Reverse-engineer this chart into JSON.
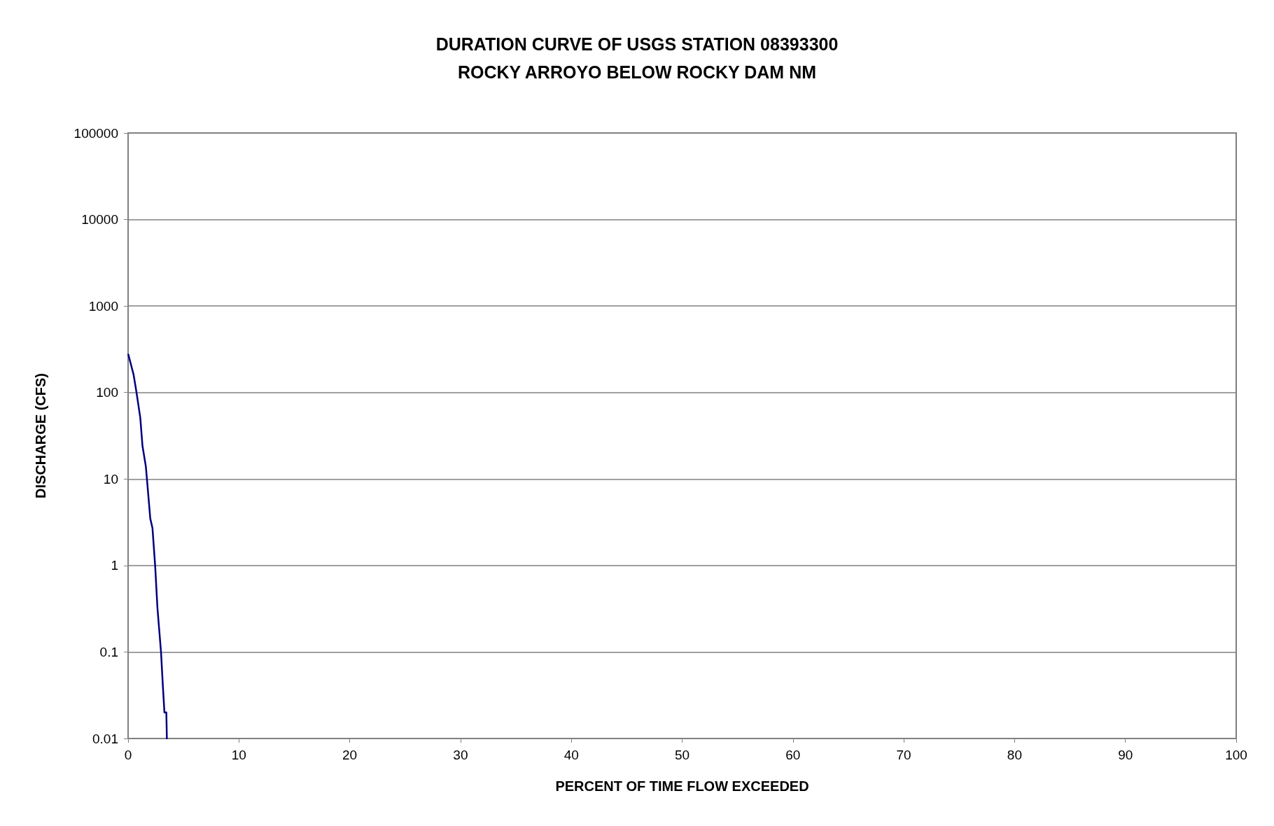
{
  "chart_data": {
    "type": "line",
    "title": "DURATION CURVE OF USGS STATION 08393300\nROCKY ARROYO BELOW ROCKY DAM NM",
    "xlabel": "PERCENT OF TIME FLOW EXCEEDED",
    "ylabel": "DISCHARGE (CFS)",
    "series": [
      {
        "color": "#000080",
        "x": [
          0.02,
          0.49,
          0.76,
          1.1,
          1.3,
          1.6,
          1.7,
          2.0,
          2.2,
          2.44,
          2.65,
          2.97,
          3.14,
          3.28,
          3.45,
          3.5
        ],
        "values": [
          275,
          162,
          100,
          51,
          24,
          14,
          10,
          3.5,
          2.7,
          1,
          0.32,
          0.1,
          0.04,
          0.02,
          0.02,
          0.01
        ]
      }
    ],
    "xlim": [
      0,
      100
    ],
    "xticks": [
      0,
      10,
      20,
      30,
      40,
      50,
      60,
      70,
      80,
      90,
      100
    ],
    "ylim": [
      0.01,
      100000
    ],
    "yticks": [
      0.01,
      0.1,
      1,
      10,
      100,
      1000,
      10000,
      100000
    ],
    "log": "y",
    "grid": "y",
    "marker": "none",
    "line_style": "solid"
  }
}
